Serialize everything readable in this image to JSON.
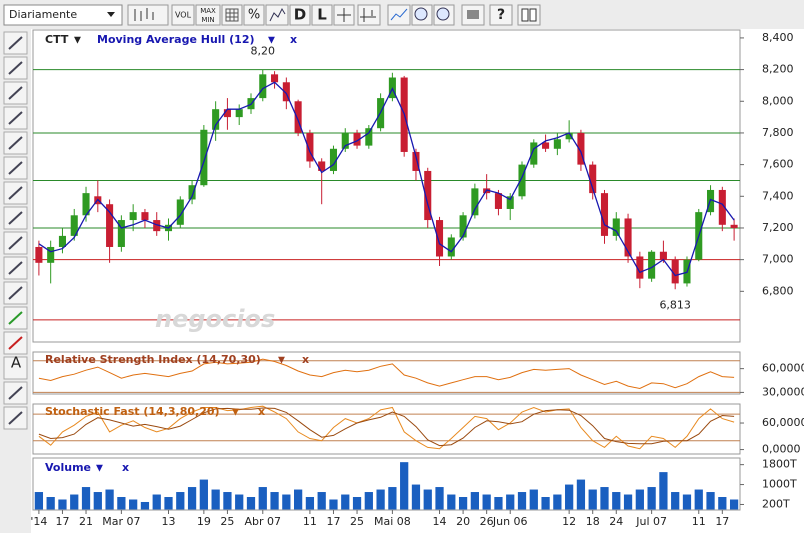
{
  "toolbar": {
    "period": "Diariamente",
    "buttons": [
      "VOL",
      "MAX",
      "MIN",
      "%",
      "D",
      "L",
      "?"
    ],
    "side_text": "A"
  },
  "chart_data": [
    {
      "type": "candlestick",
      "title": "CTT",
      "menu": "▼",
      "close": "x",
      "watermark": "negocios",
      "ylim": [
        6.48,
        8.45
      ],
      "yticks": [
        {
          "value": 6.8,
          "label": "6,800"
        },
        {
          "value": 7.0,
          "label": "7,000"
        },
        {
          "value": 7.2,
          "label": "7,200"
        },
        {
          "value": 7.4,
          "label": "7,400"
        },
        {
          "value": 7.6,
          "label": "7,600"
        },
        {
          "value": 7.8,
          "label": "7,800"
        },
        {
          "value": 8.0,
          "label": "8,000"
        },
        {
          "value": 8.2,
          "label": "8,200"
        },
        {
          "value": 8.4,
          "label": "8,400"
        }
      ],
      "up_color": "#2f9a22",
      "down_color": "#c81e32",
      "levels": [
        {
          "value": 8.2,
          "color": "#2a8a2a"
        },
        {
          "value": 7.8,
          "color": "#2a8a2a"
        },
        {
          "value": 7.5,
          "color": "#2a8a2a"
        },
        {
          "value": 7.2,
          "color": "#2a8a2a"
        },
        {
          "value": 7.0,
          "color": "#c82020"
        },
        {
          "value": 6.62,
          "color": "#c82020"
        }
      ],
      "annotations": [
        {
          "value": 8.2,
          "label": "8,20"
        },
        {
          "value": 6.813,
          "label": "6,813"
        }
      ],
      "candles": [
        [
          7.08,
          7.12,
          6.9,
          6.98
        ],
        [
          6.98,
          7.12,
          6.85,
          7.08
        ],
        [
          7.08,
          7.2,
          7.04,
          7.15
        ],
        [
          7.15,
          7.32,
          7.12,
          7.28
        ],
        [
          7.28,
          7.46,
          7.24,
          7.42
        ],
        [
          7.4,
          7.5,
          7.3,
          7.35
        ],
        [
          7.35,
          7.38,
          6.98,
          7.08
        ],
        [
          7.08,
          7.28,
          7.05,
          7.25
        ],
        [
          7.25,
          7.35,
          7.18,
          7.3
        ],
        [
          7.3,
          7.32,
          7.2,
          7.25
        ],
        [
          7.25,
          7.3,
          7.15,
          7.18
        ],
        [
          7.18,
          7.26,
          7.12,
          7.22
        ],
        [
          7.22,
          7.4,
          7.2,
          7.38
        ],
        [
          7.38,
          7.5,
          7.35,
          7.47
        ],
        [
          7.47,
          7.85,
          7.46,
          7.82
        ],
        [
          7.82,
          8.0,
          7.75,
          7.95
        ],
        [
          7.95,
          8.02,
          7.82,
          7.9
        ],
        [
          7.9,
          7.98,
          7.85,
          7.95
        ],
        [
          7.95,
          8.05,
          7.92,
          8.02
        ],
        [
          8.02,
          8.2,
          8.0,
          8.17
        ],
        [
          8.17,
          8.19,
          8.08,
          8.12
        ],
        [
          8.12,
          8.15,
          7.95,
          8.0
        ],
        [
          8.0,
          8.01,
          7.78,
          7.8
        ],
        [
          7.8,
          7.82,
          7.58,
          7.62
        ],
        [
          7.62,
          7.64,
          7.35,
          7.56
        ],
        [
          7.56,
          7.72,
          7.54,
          7.7
        ],
        [
          7.7,
          7.83,
          7.68,
          7.8
        ],
        [
          7.8,
          7.82,
          7.7,
          7.72
        ],
        [
          7.72,
          7.85,
          7.7,
          7.83
        ],
        [
          7.83,
          8.05,
          7.81,
          8.02
        ],
        [
          8.02,
          8.18,
          8.0,
          8.15
        ],
        [
          8.15,
          8.16,
          7.65,
          7.68
        ],
        [
          7.68,
          7.7,
          7.5,
          7.56
        ],
        [
          7.56,
          7.58,
          7.2,
          7.25
        ],
        [
          7.25,
          7.27,
          6.96,
          7.02
        ],
        [
          7.02,
          7.16,
          7.0,
          7.14
        ],
        [
          7.14,
          7.3,
          7.12,
          7.28
        ],
        [
          7.28,
          7.48,
          7.26,
          7.45
        ],
        [
          7.45,
          7.54,
          7.38,
          7.42
        ],
        [
          7.42,
          7.44,
          7.28,
          7.32
        ],
        [
          7.32,
          7.42,
          7.25,
          7.4
        ],
        [
          7.4,
          7.62,
          7.38,
          7.6
        ],
        [
          7.6,
          7.76,
          7.58,
          7.74
        ],
        [
          7.74,
          7.79,
          7.68,
          7.7
        ],
        [
          7.7,
          7.8,
          7.66,
          7.76
        ],
        [
          7.76,
          7.88,
          7.74,
          7.8
        ],
        [
          7.8,
          7.82,
          7.56,
          7.6
        ],
        [
          7.6,
          7.62,
          7.38,
          7.42
        ],
        [
          7.42,
          7.44,
          7.1,
          7.15
        ],
        [
          7.15,
          7.3,
          7.12,
          7.26
        ],
        [
          7.26,
          7.29,
          6.98,
          7.02
        ],
        [
          7.02,
          7.05,
          6.82,
          6.88
        ],
        [
          6.88,
          7.06,
          6.86,
          7.05
        ],
        [
          7.05,
          7.12,
          6.98,
          7.0
        ],
        [
          7.0,
          7.02,
          6.813,
          6.85
        ],
        [
          6.85,
          7.02,
          6.83,
          7.0
        ],
        [
          7.0,
          7.32,
          6.99,
          7.3
        ],
        [
          7.3,
          7.47,
          7.28,
          7.44
        ],
        [
          7.44,
          7.46,
          7.18,
          7.22
        ],
        [
          7.22,
          7.26,
          7.12,
          7.2
        ]
      ],
      "series": [
        {
          "name": "Moving Average Hull (12)",
          "color": "#1818b0",
          "values": [
            7.1,
            7.05,
            7.07,
            7.14,
            7.28,
            7.38,
            7.3,
            7.2,
            7.22,
            7.25,
            7.22,
            7.2,
            7.28,
            7.4,
            7.62,
            7.85,
            7.95,
            7.95,
            7.98,
            8.08,
            8.12,
            8.05,
            7.88,
            7.68,
            7.55,
            7.6,
            7.72,
            7.75,
            7.8,
            7.93,
            8.08,
            7.92,
            7.65,
            7.35,
            7.1,
            7.05,
            7.15,
            7.32,
            7.44,
            7.42,
            7.38,
            7.52,
            7.7,
            7.75,
            7.77,
            7.8,
            7.68,
            7.45,
            7.22,
            7.18,
            7.05,
            6.92,
            6.95,
            7.0,
            6.9,
            6.92,
            7.15,
            7.38,
            7.35,
            7.25
          ]
        }
      ]
    },
    {
      "type": "line",
      "title": "Relative Strength Index (14,70,30)",
      "menu": "▼",
      "close": "x",
      "ylim": [
        28,
        81
      ],
      "yticks": [
        {
          "value": 30,
          "label": "30,0000"
        },
        {
          "value": 60,
          "label": "60,0000"
        }
      ],
      "levels": [
        70,
        30
      ],
      "series": [
        {
          "color": "#e07010",
          "values": [
            48,
            45,
            50,
            53,
            58,
            62,
            55,
            48,
            52,
            54,
            52,
            50,
            54,
            57,
            66,
            68,
            66,
            67,
            68,
            72,
            69,
            64,
            57,
            52,
            50,
            55,
            58,
            56,
            58,
            63,
            66,
            52,
            48,
            42,
            38,
            42,
            46,
            50,
            50,
            46,
            49,
            55,
            59,
            58,
            59,
            60,
            52,
            46,
            40,
            44,
            38,
            35,
            42,
            41,
            36,
            41,
            50,
            56,
            50,
            49
          ]
        }
      ]
    },
    {
      "type": "line",
      "title": "Stochastic Fast (14,3,80,20)",
      "menu": "▼",
      "close": "x",
      "ylim": [
        -10,
        103
      ],
      "yticks": [
        {
          "value": 0,
          "label": "0,0000"
        },
        {
          "value": 60,
          "label": "60,0000"
        }
      ],
      "levels": [
        80,
        20
      ],
      "series": [
        {
          "color": "#e88a20",
          "values": [
            30,
            10,
            40,
            55,
            75,
            85,
            40,
            55,
            65,
            50,
            40,
            48,
            70,
            85,
            95,
            95,
            88,
            90,
            95,
            98,
            85,
            70,
            40,
            25,
            20,
            50,
            70,
            60,
            70,
            90,
            95,
            40,
            20,
            5,
            2,
            25,
            50,
            75,
            70,
            45,
            60,
            85,
            95,
            85,
            90,
            92,
            50,
            20,
            5,
            30,
            8,
            2,
            30,
            25,
            5,
            30,
            70,
            92,
            70,
            62
          ]
        },
        {
          "color": "#9a4a10",
          "values": [
            35,
            25,
            27,
            35,
            57,
            72,
            67,
            60,
            53,
            57,
            52,
            46,
            53,
            68,
            83,
            92,
            93,
            91,
            91,
            94,
            93,
            84,
            65,
            45,
            28,
            32,
            47,
            60,
            67,
            73,
            85,
            75,
            52,
            22,
            9,
            11,
            26,
            50,
            65,
            63,
            58,
            63,
            80,
            88,
            90,
            89,
            77,
            54,
            25,
            18,
            14,
            13,
            13,
            19,
            20,
            20,
            35,
            64,
            77,
            75
          ]
        }
      ]
    },
    {
      "type": "bar",
      "title": "Volume",
      "menu": "▼",
      "close": "x",
      "color": "#1a5fc0",
      "ylim": [
        -22000,
        2067000
      ],
      "yticks": [
        {
          "value": 200000,
          "label": "200T"
        },
        {
          "value": 1000000,
          "label": "1000T"
        },
        {
          "value": 1800000,
          "label": "1800T"
        }
      ],
      "categories": [
        "'14",
        null,
        "17",
        null,
        "21",
        null,
        null,
        "Mar 07",
        null,
        null,
        null,
        "13",
        null,
        null,
        "19",
        null,
        "25",
        null,
        null,
        "Abr 07",
        null,
        null,
        null,
        "11",
        null,
        "17",
        null,
        "25",
        null,
        null,
        "Mai 08",
        null,
        null,
        null,
        "14",
        null,
        "20",
        null,
        "26",
        null,
        "Jun 06",
        null,
        null,
        null,
        null,
        "12",
        null,
        "18",
        null,
        "24",
        null,
        null,
        "Jul 07",
        null,
        null,
        null,
        "11",
        null,
        "17",
        null
      ],
      "values": [
        700000,
        500000,
        400000,
        600000,
        900000,
        700000,
        800000,
        500000,
        400000,
        300000,
        600000,
        500000,
        700000,
        900000,
        1200000,
        800000,
        700000,
        600000,
        500000,
        900000,
        700000,
        600000,
        800000,
        500000,
        700000,
        400000,
        600000,
        500000,
        700000,
        800000,
        900000,
        1900000,
        1000000,
        800000,
        900000,
        600000,
        500000,
        700000,
        600000,
        500000,
        600000,
        700000,
        800000,
        500000,
        600000,
        1000000,
        1200000,
        800000,
        900000,
        700000,
        600000,
        800000,
        900000,
        1500000,
        700000,
        600000,
        800000,
        700000,
        500000,
        400000
      ]
    }
  ]
}
